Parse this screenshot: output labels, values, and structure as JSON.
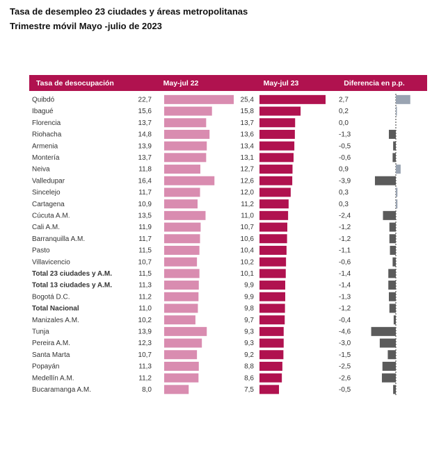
{
  "header": {
    "title": "Tasa de desempleo 23 ciudades y áreas metropolitanas",
    "subtitle": "Trimestre móvil Mayo -julio de 2023"
  },
  "colors": {
    "header_bg": "#b0124f",
    "header_text": "#ffffff",
    "bar_2022": "#d98cb0",
    "bar_2023": "#b0124f",
    "diff_positive": "#9aa4b2",
    "diff_negative": "#5b5b5b",
    "zero_line": "#333333"
  },
  "chart_data": {
    "type": "table",
    "columns": [
      "Tasa de desocupación",
      "May-jul 22",
      "May-jul 23",
      "Diferencia en p.p."
    ],
    "rows": [
      {
        "name": "Quibdó",
        "v22": "22,7",
        "v23": "25,4",
        "diff": "2,7",
        "bold": false
      },
      {
        "name": "Ibagué",
        "v22": "15,6",
        "v23": "15,8",
        "diff": "0,2",
        "bold": false
      },
      {
        "name": "Florencia",
        "v22": "13,7",
        "v23": "13,7",
        "diff": "0,0",
        "bold": false
      },
      {
        "name": "Riohacha",
        "v22": "14,8",
        "v23": "13,6",
        "diff": "-1,3",
        "bold": false
      },
      {
        "name": "Armenia",
        "v22": "13,9",
        "v23": "13,4",
        "diff": "-0,5",
        "bold": false
      },
      {
        "name": "Montería",
        "v22": "13,7",
        "v23": "13,1",
        "diff": "-0,6",
        "bold": false
      },
      {
        "name": "Neiva",
        "v22": "11,8",
        "v23": "12,7",
        "diff": "0,9",
        "bold": false
      },
      {
        "name": "Valledupar",
        "v22": "16,4",
        "v23": "12,6",
        "diff": "-3,9",
        "bold": false
      },
      {
        "name": "Sincelejo",
        "v22": "11,7",
        "v23": "12,0",
        "diff": "0,3",
        "bold": false
      },
      {
        "name": "Cartagena",
        "v22": "10,9",
        "v23": "11,2",
        "diff": "0,3",
        "bold": false
      },
      {
        "name": "Cúcuta A.M.",
        "v22": "13,5",
        "v23": "11,0",
        "diff": "-2,4",
        "bold": false
      },
      {
        "name": "Cali A.M.",
        "v22": "11,9",
        "v23": "10,7",
        "diff": "-1,2",
        "bold": false
      },
      {
        "name": "Barranquilla A.M.",
        "v22": "11,7",
        "v23": "10,6",
        "diff": "-1,2",
        "bold": false
      },
      {
        "name": "Pasto",
        "v22": "11,5",
        "v23": "10,4",
        "diff": "-1,1",
        "bold": false
      },
      {
        "name": "Villavicencio",
        "v22": "10,7",
        "v23": "10,2",
        "diff": "-0,6",
        "bold": false
      },
      {
        "name": "Total 23 ciudades y A.M.",
        "v22": "11,5",
        "v23": "10,1",
        "diff": "-1,4",
        "bold": true
      },
      {
        "name": "Total 13 ciudades y A.M.",
        "v22": "11,3",
        "v23": "9,9",
        "diff": "-1,4",
        "bold": true
      },
      {
        "name": "Bogotá D.C.",
        "v22": "11,2",
        "v23": "9,9",
        "diff": "-1,3",
        "bold": false
      },
      {
        "name": "Total Nacional",
        "v22": "11,0",
        "v23": "9,8",
        "diff": "-1,2",
        "bold": true
      },
      {
        "name": "Manizales A.M.",
        "v22": "10,2",
        "v23": "9,7",
        "diff": "-0,4",
        "bold": false
      },
      {
        "name": "Tunja",
        "v22": "13,9",
        "v23": "9,3",
        "diff": "-4,6",
        "bold": false
      },
      {
        "name": "Pereira A.M.",
        "v22": "12,3",
        "v23": "9,3",
        "diff": "-3,0",
        "bold": false
      },
      {
        "name": "Santa Marta",
        "v22": "10,7",
        "v23": "9,2",
        "diff": "-1,5",
        "bold": false
      },
      {
        "name": "Popayán",
        "v22": "11,3",
        "v23": "8,8",
        "diff": "-2,5",
        "bold": false
      },
      {
        "name": "Medellín A.M.",
        "v22": "11,2",
        "v23": "8,6",
        "diff": "-2,6",
        "bold": false
      },
      {
        "name": "Bucaramanga A.M.",
        "v22": "8,0",
        "v23": "7,5",
        "diff": "-0,5",
        "bold": false
      }
    ]
  }
}
